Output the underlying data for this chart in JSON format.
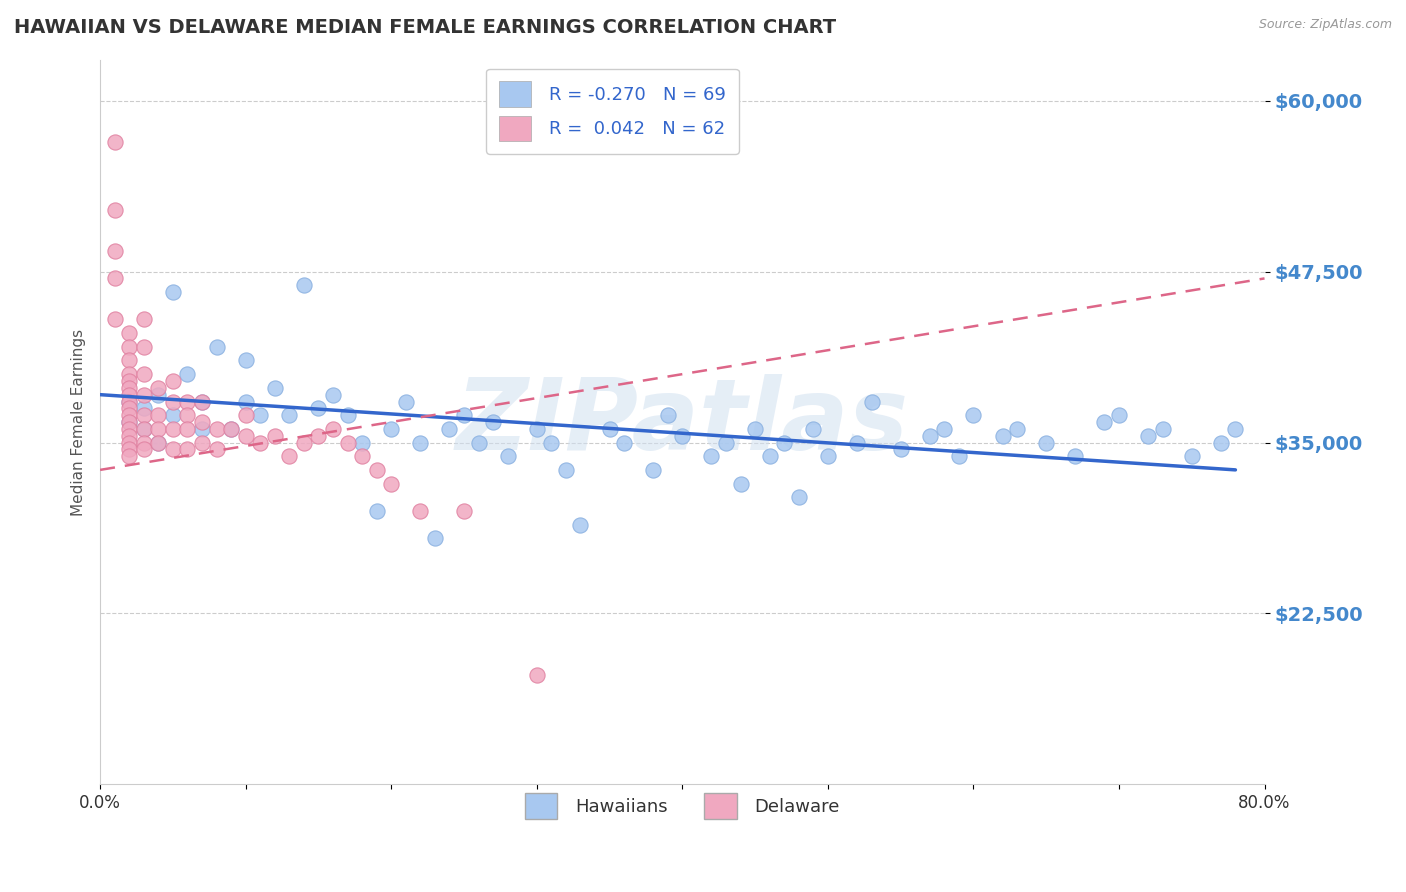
{
  "title": "HAWAIIAN VS DELAWARE MEDIAN FEMALE EARNINGS CORRELATION CHART",
  "source_text": "Source: ZipAtlas.com",
  "ylabel": "Median Female Earnings",
  "xlim": [
    0.0,
    0.8
  ],
  "ylim": [
    10000,
    63000
  ],
  "yticks": [
    22500,
    35000,
    47500,
    60000
  ],
  "ytick_labels": [
    "$22,500",
    "$35,000",
    "$47,500",
    "$60,000"
  ],
  "xticks": [
    0.0,
    0.1,
    0.2,
    0.3,
    0.4,
    0.5,
    0.6,
    0.7,
    0.8
  ],
  "xtick_labels": [
    "0.0%",
    "",
    "",
    "",
    "",
    "",
    "",
    "",
    "80.0%"
  ],
  "hawaiians_color": "#a8c8f0",
  "delaware_color": "#f0a8c0",
  "trend_blue_color": "#3366cc",
  "trend_pink_color": "#dd6688",
  "R_hawaiians": -0.27,
  "N_hawaiians": 69,
  "R_delaware": 0.042,
  "N_delaware": 62,
  "legend_label_hawaiians": "Hawaiians",
  "legend_label_delaware": "Delaware",
  "background_color": "#ffffff",
  "grid_color": "#cccccc",
  "axis_label_color": "#4488cc",
  "title_color": "#333333",
  "watermark": "ZIPatlas",
  "hawaiians_x": [
    0.02,
    0.02,
    0.03,
    0.03,
    0.04,
    0.04,
    0.05,
    0.05,
    0.06,
    0.07,
    0.07,
    0.08,
    0.09,
    0.1,
    0.1,
    0.11,
    0.12,
    0.13,
    0.14,
    0.15,
    0.16,
    0.17,
    0.18,
    0.19,
    0.2,
    0.21,
    0.22,
    0.23,
    0.24,
    0.25,
    0.26,
    0.27,
    0.28,
    0.3,
    0.31,
    0.32,
    0.33,
    0.35,
    0.36,
    0.38,
    0.39,
    0.4,
    0.42,
    0.43,
    0.44,
    0.45,
    0.46,
    0.47,
    0.48,
    0.49,
    0.5,
    0.52,
    0.53,
    0.55,
    0.57,
    0.58,
    0.59,
    0.6,
    0.62,
    0.63,
    0.65,
    0.67,
    0.69,
    0.7,
    0.72,
    0.73,
    0.75,
    0.77,
    0.78
  ],
  "hawaiians_y": [
    38000,
    36500,
    37500,
    36000,
    38500,
    35000,
    46000,
    37000,
    40000,
    38000,
    36000,
    42000,
    36000,
    41000,
    38000,
    37000,
    39000,
    37000,
    46500,
    37500,
    38500,
    37000,
    35000,
    30000,
    36000,
    38000,
    35000,
    28000,
    36000,
    37000,
    35000,
    36500,
    34000,
    36000,
    35000,
    33000,
    29000,
    36000,
    35000,
    33000,
    37000,
    35500,
    34000,
    35000,
    32000,
    36000,
    34000,
    35000,
    31000,
    36000,
    34000,
    35000,
    38000,
    34500,
    35500,
    36000,
    34000,
    37000,
    35500,
    36000,
    35000,
    34000,
    36500,
    37000,
    35500,
    36000,
    34000,
    35000,
    36000
  ],
  "delaware_x": [
    0.01,
    0.01,
    0.01,
    0.01,
    0.01,
    0.02,
    0.02,
    0.02,
    0.02,
    0.02,
    0.02,
    0.02,
    0.02,
    0.02,
    0.02,
    0.02,
    0.02,
    0.02,
    0.02,
    0.02,
    0.02,
    0.03,
    0.03,
    0.03,
    0.03,
    0.03,
    0.03,
    0.03,
    0.03,
    0.04,
    0.04,
    0.04,
    0.04,
    0.05,
    0.05,
    0.05,
    0.05,
    0.06,
    0.06,
    0.06,
    0.06,
    0.07,
    0.07,
    0.07,
    0.08,
    0.08,
    0.09,
    0.1,
    0.1,
    0.11,
    0.12,
    0.13,
    0.14,
    0.15,
    0.16,
    0.17,
    0.18,
    0.19,
    0.2,
    0.22,
    0.25,
    0.3
  ],
  "delaware_y": [
    57000,
    52000,
    49000,
    47000,
    44000,
    43000,
    42000,
    41000,
    40000,
    39500,
    39000,
    38500,
    38000,
    37500,
    37000,
    36500,
    36000,
    35500,
    35000,
    34500,
    34000,
    44000,
    42000,
    40000,
    38500,
    37000,
    36000,
    35000,
    34500,
    39000,
    37000,
    36000,
    35000,
    39500,
    38000,
    36000,
    34500,
    38000,
    37000,
    36000,
    34500,
    38000,
    36500,
    35000,
    36000,
    34500,
    36000,
    37000,
    35500,
    35000,
    35500,
    34000,
    35000,
    35500,
    36000,
    35000,
    34000,
    33000,
    32000,
    30000,
    30000,
    18000
  ],
  "blue_trend_x0": 0.0,
  "blue_trend_y0": 38500,
  "blue_trend_x1": 0.78,
  "blue_trend_y1": 33000,
  "pink_trend_x0": 0.0,
  "pink_trend_y0": 33000,
  "pink_trend_x1": 0.8,
  "pink_trend_y1": 47000
}
